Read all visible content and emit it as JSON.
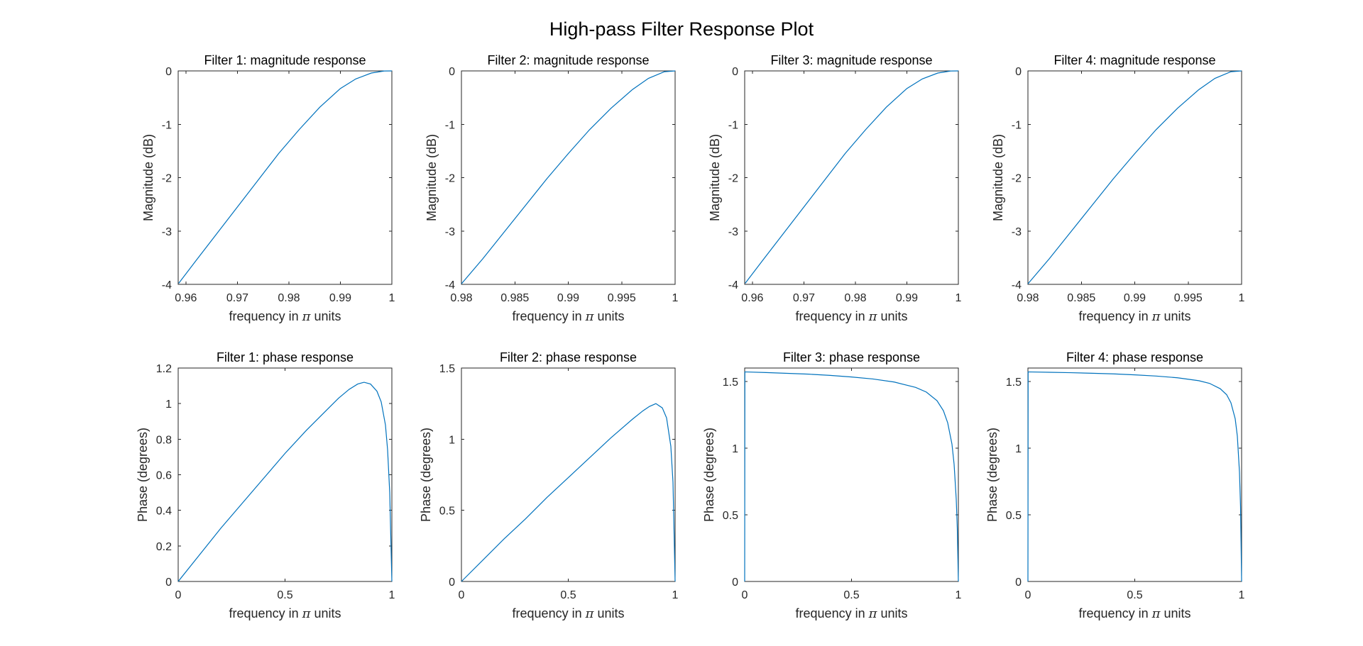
{
  "figure": {
    "title": "High-pass Filter Response Plot",
    "line_color": "#0072BD",
    "background": "#FFFFFF"
  },
  "chart_data": [
    {
      "type": "line",
      "title": "Filter 1: magnitude response",
      "xlabel": "frequency in π units",
      "ylabel": "Magnitude (dB)",
      "xlim": [
        0.9585,
        1.0
      ],
      "ylim": [
        -4,
        0
      ],
      "xticks": [
        0.96,
        0.97,
        0.98,
        0.99,
        1
      ],
      "xtick_labels": [
        "0.96",
        "0.97",
        "0.98",
        "0.99",
        "1"
      ],
      "yticks": [
        -4,
        -3,
        -2,
        -1,
        0
      ],
      "ytick_labels": [
        "-4",
        "-3",
        "-2",
        "-1",
        "0"
      ],
      "grid": false,
      "series": [
        {
          "x": [
            0.9586,
            0.962,
            0.966,
            0.97,
            0.974,
            0.978,
            0.982,
            0.986,
            0.99,
            0.993,
            0.996,
            0.9985,
            1.0
          ],
          "y": [
            -3.98,
            -3.55,
            -3.05,
            -2.55,
            -2.05,
            -1.55,
            -1.1,
            -0.68,
            -0.33,
            -0.15,
            -0.04,
            -0.002,
            0.0
          ]
        }
      ]
    },
    {
      "type": "line",
      "title": "Filter 2: magnitude response",
      "xlabel": "frequency in π units",
      "ylabel": "Magnitude (dB)",
      "xlim": [
        0.98,
        1.0
      ],
      "ylim": [
        -4,
        0
      ],
      "xticks": [
        0.98,
        0.985,
        0.99,
        0.995,
        1
      ],
      "xtick_labels": [
        "0.98",
        "0.985",
        "0.99",
        "0.995",
        "1"
      ],
      "yticks": [
        -4,
        -3,
        -2,
        -1,
        0
      ],
      "ytick_labels": [
        "-4",
        "-3",
        "-2",
        "-1",
        "0"
      ],
      "grid": false,
      "series": [
        {
          "x": [
            0.98,
            0.982,
            0.984,
            0.986,
            0.988,
            0.99,
            0.992,
            0.994,
            0.996,
            0.9975,
            0.999,
            1.0
          ],
          "y": [
            -3.99,
            -3.52,
            -3.02,
            -2.52,
            -2.02,
            -1.55,
            -1.1,
            -0.7,
            -0.35,
            -0.14,
            -0.015,
            0.0
          ]
        }
      ]
    },
    {
      "type": "line",
      "title": "Filter 3: magnitude response",
      "xlabel": "frequency in π units",
      "ylabel": "Magnitude (dB)",
      "xlim": [
        0.9585,
        1.0
      ],
      "ylim": [
        -4,
        0
      ],
      "xticks": [
        0.96,
        0.97,
        0.98,
        0.99,
        1
      ],
      "xtick_labels": [
        "0.96",
        "0.97",
        "0.98",
        "0.99",
        "1"
      ],
      "yticks": [
        -4,
        -3,
        -2,
        -1,
        0
      ],
      "ytick_labels": [
        "-4",
        "-3",
        "-2",
        "-1",
        "0"
      ],
      "grid": false,
      "series": [
        {
          "x": [
            0.9586,
            0.962,
            0.966,
            0.97,
            0.974,
            0.978,
            0.982,
            0.986,
            0.99,
            0.993,
            0.996,
            0.9985,
            1.0
          ],
          "y": [
            -3.98,
            -3.55,
            -3.05,
            -2.55,
            -2.05,
            -1.55,
            -1.1,
            -0.68,
            -0.33,
            -0.15,
            -0.04,
            -0.002,
            0.0
          ]
        }
      ]
    },
    {
      "type": "line",
      "title": "Filter 4: magnitude response",
      "xlabel": "frequency in π units",
      "ylabel": "Magnitude (dB)",
      "xlim": [
        0.98,
        1.0
      ],
      "ylim": [
        -4,
        0
      ],
      "xticks": [
        0.98,
        0.985,
        0.99,
        0.995,
        1
      ],
      "xtick_labels": [
        "0.98",
        "0.985",
        "0.99",
        "0.995",
        "1"
      ],
      "yticks": [
        -4,
        -3,
        -2,
        -1,
        0
      ],
      "ytick_labels": [
        "-4",
        "-3",
        "-2",
        "-1",
        "0"
      ],
      "grid": false,
      "series": [
        {
          "x": [
            0.98,
            0.982,
            0.984,
            0.986,
            0.988,
            0.99,
            0.992,
            0.994,
            0.996,
            0.9975,
            0.999,
            1.0
          ],
          "y": [
            -3.99,
            -3.52,
            -3.02,
            -2.52,
            -2.02,
            -1.55,
            -1.1,
            -0.7,
            -0.35,
            -0.14,
            -0.015,
            0.0
          ]
        }
      ]
    },
    {
      "type": "line",
      "title": "Filter 1: phase response",
      "xlabel": "frequency in π units",
      "ylabel": "Phase (degrees)",
      "xlim": [
        0,
        1
      ],
      "ylim": [
        0,
        1.2
      ],
      "xticks": [
        0,
        0.5,
        1
      ],
      "xtick_labels": [
        "0",
        "0.5",
        "1"
      ],
      "yticks": [
        0,
        0.2,
        0.4,
        0.6,
        0.8,
        1,
        1.2
      ],
      "ytick_labels": [
        "0",
        "0.2",
        "0.4",
        "0.6",
        "0.8",
        "1",
        "1.2"
      ],
      "grid": false,
      "series": [
        {
          "x": [
            0,
            0.1,
            0.2,
            0.3,
            0.4,
            0.5,
            0.6,
            0.7,
            0.75,
            0.8,
            0.84,
            0.87,
            0.9,
            0.93,
            0.95,
            0.97,
            0.98,
            0.99,
            1.0
          ],
          "y": [
            0,
            0.15,
            0.3,
            0.44,
            0.58,
            0.72,
            0.85,
            0.97,
            1.03,
            1.08,
            1.11,
            1.12,
            1.11,
            1.07,
            1.01,
            0.88,
            0.74,
            0.5,
            0.0
          ]
        }
      ]
    },
    {
      "type": "line",
      "title": "Filter 2: phase response",
      "xlabel": "frequency in π units",
      "ylabel": "Phase (degrees)",
      "xlim": [
        0,
        1
      ],
      "ylim": [
        0,
        1.5
      ],
      "xticks": [
        0,
        0.5,
        1
      ],
      "xtick_labels": [
        "0",
        "0.5",
        "1"
      ],
      "yticks": [
        0,
        0.5,
        1,
        1.5
      ],
      "ytick_labels": [
        "0",
        "0.5",
        "1",
        "1.5"
      ],
      "grid": false,
      "series": [
        {
          "x": [
            0,
            0.1,
            0.2,
            0.3,
            0.4,
            0.5,
            0.6,
            0.7,
            0.8,
            0.85,
            0.88,
            0.91,
            0.94,
            0.96,
            0.98,
            0.99,
            1.0
          ],
          "y": [
            0,
            0.15,
            0.3,
            0.44,
            0.59,
            0.73,
            0.87,
            1.01,
            1.14,
            1.2,
            1.23,
            1.25,
            1.22,
            1.15,
            0.95,
            0.7,
            0.0
          ]
        }
      ]
    },
    {
      "type": "line",
      "title": "Filter 3: phase response",
      "xlabel": "frequency in π units",
      "ylabel": "Phase (degrees)",
      "xlim": [
        0,
        1
      ],
      "ylim": [
        0,
        1.6
      ],
      "xticks": [
        0,
        0.5,
        1
      ],
      "xtick_labels": [
        "0",
        "0.5",
        "1"
      ],
      "yticks": [
        0,
        0.5,
        1,
        1.5
      ],
      "ytick_labels": [
        "0",
        "0.5",
        "1",
        "1.5"
      ],
      "grid": false,
      "series": [
        {
          "x": [
            0,
            0.001,
            0.1,
            0.2,
            0.3,
            0.4,
            0.5,
            0.6,
            0.7,
            0.8,
            0.85,
            0.9,
            0.93,
            0.95,
            0.97,
            0.98,
            0.99,
            0.995,
            1.0
          ],
          "y": [
            0,
            1.571,
            1.566,
            1.56,
            1.554,
            1.545,
            1.533,
            1.518,
            1.495,
            1.455,
            1.42,
            1.355,
            1.28,
            1.19,
            1.03,
            0.88,
            0.62,
            0.4,
            0.0
          ]
        }
      ]
    },
    {
      "type": "line",
      "title": "Filter 4: phase response",
      "xlabel": "frequency in π units",
      "ylabel": "Phase (degrees)",
      "xlim": [
        0,
        1
      ],
      "ylim": [
        0,
        1.6
      ],
      "xticks": [
        0,
        0.5,
        1
      ],
      "xtick_labels": [
        "0",
        "0.5",
        "1"
      ],
      "yticks": [
        0,
        0.5,
        1,
        1.5
      ],
      "ytick_labels": [
        "0",
        "0.5",
        "1",
        "1.5"
      ],
      "grid": false,
      "series": [
        {
          "x": [
            0,
            0.001,
            0.1,
            0.2,
            0.3,
            0.4,
            0.5,
            0.6,
            0.7,
            0.8,
            0.85,
            0.9,
            0.93,
            0.95,
            0.97,
            0.98,
            0.99,
            0.995,
            1.0
          ],
          "y": [
            0,
            1.571,
            1.568,
            1.565,
            1.561,
            1.556,
            1.549,
            1.54,
            1.527,
            1.505,
            1.485,
            1.445,
            1.4,
            1.34,
            1.22,
            1.09,
            0.82,
            0.56,
            0.0
          ]
        }
      ]
    }
  ]
}
